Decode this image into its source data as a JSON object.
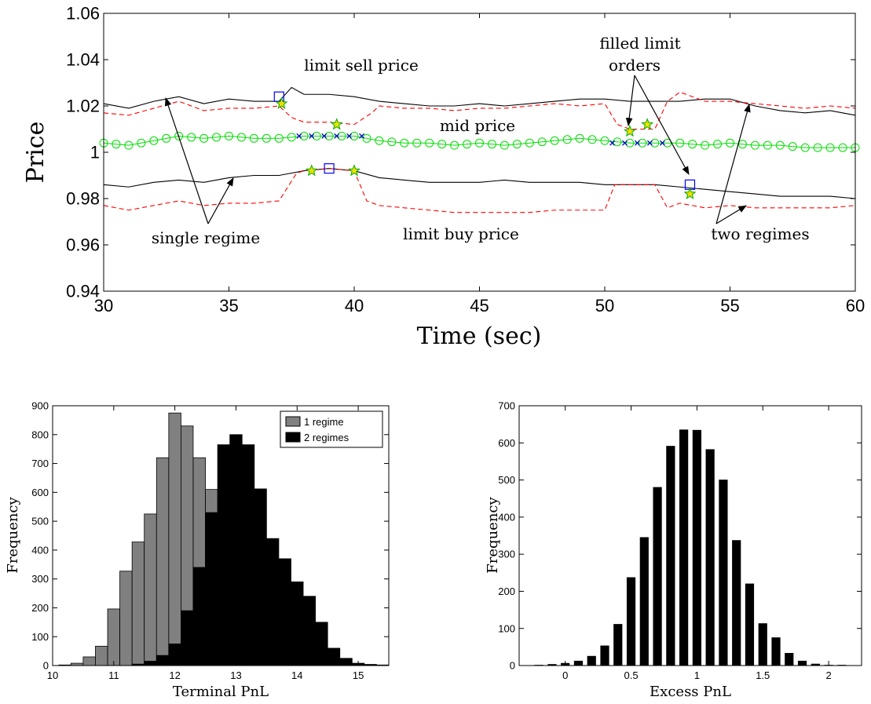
{
  "chart_data": [
    {
      "type": "line",
      "title": "",
      "xlabel": "Time (sec)",
      "ylabel": "Price",
      "xlim": [
        30,
        60
      ],
      "ylim": [
        0.94,
        1.06
      ],
      "xticks": [
        30,
        35,
        40,
        45,
        50,
        55,
        60
      ],
      "yticks": [
        0.94,
        0.96,
        0.98,
        1,
        1.02,
        1.04,
        1.06
      ],
      "xtick_labels": [
        "30",
        "35",
        "40",
        "45",
        "50",
        "55",
        "60"
      ],
      "ytick_labels": [
        "0.94",
        "0.96",
        "0.98",
        "1",
        "1.02",
        "1.04",
        "1.06"
      ],
      "grid": false,
      "colors": {
        "solid": "#000000",
        "dashed": "#ff0000",
        "mid": "#00dd00",
        "cross": "#0000cc",
        "square": "#0000ff",
        "star": "#00aa00",
        "star_fill": "#f0e000"
      },
      "series": [
        {
          "key": "mid",
          "style": "green-circles",
          "x": [
            30,
            31,
            32,
            33,
            34,
            35,
            36,
            37,
            38,
            39,
            40,
            41,
            42,
            43,
            44,
            45,
            46,
            47,
            48,
            49,
            50,
            51,
            52,
            53,
            54,
            55,
            56,
            57,
            58,
            59,
            60
          ],
          "y": [
            1.004,
            1.003,
            1.005,
            1.007,
            1.006,
            1.007,
            1.006,
            1.006,
            1.007,
            1.007,
            1.007,
            1.005,
            1.004,
            1.004,
            1.003,
            1.004,
            1.003,
            1.004,
            1.005,
            1.006,
            1.005,
            1.004,
            1.004,
            1.004,
            1.003,
            1.004,
            1.003,
            1.003,
            1.002,
            1.002,
            1.002
          ]
        },
        {
          "key": "mid_cross_1",
          "style": "blue-crosses",
          "x": [
            37.8,
            38.3,
            38.8,
            39.3,
            39.8,
            40.3
          ],
          "y": [
            1.007,
            1.007,
            1.007,
            1.007,
            1.007,
            1.007
          ]
        },
        {
          "key": "mid_cross_2",
          "style": "blue-crosses",
          "x": [
            50.3,
            50.8,
            51.3,
            51.8,
            52.3
          ],
          "y": [
            1.004,
            1.004,
            1.004,
            1.004,
            1.004
          ]
        },
        {
          "key": "sell_outer",
          "style": "black-solid",
          "x": [
            30,
            31,
            32,
            33,
            34,
            35,
            36,
            37,
            37.5,
            38,
            39,
            40,
            41,
            42,
            43,
            44,
            45,
            46,
            47,
            48,
            49,
            50,
            51,
            52,
            53,
            54,
            55,
            56,
            57,
            58,
            59,
            60
          ],
          "y": [
            1.021,
            1.019,
            1.022,
            1.024,
            1.021,
            1.023,
            1.022,
            1.022,
            1.028,
            1.025,
            1.025,
            1.024,
            1.022,
            1.021,
            1.02,
            1.02,
            1.021,
            1.02,
            1.021,
            1.022,
            1.023,
            1.023,
            1.022,
            1.022,
            1.022,
            1.023,
            1.023,
            1.02,
            1.018,
            1.017,
            1.018,
            1.016
          ]
        },
        {
          "key": "sell_inner",
          "style": "red-dashed",
          "x": [
            30,
            31,
            32,
            33,
            34,
            35,
            36,
            37,
            37.5,
            38,
            39,
            40,
            40.7,
            41,
            42,
            43,
            44,
            45,
            46,
            47,
            48,
            49,
            50,
            50.5,
            51,
            52,
            52.5,
            53,
            54,
            55,
            56,
            57,
            58,
            59,
            60
          ],
          "y": [
            1.017,
            1.016,
            1.019,
            1.022,
            1.018,
            1.019,
            1.019,
            1.02,
            1.015,
            1.013,
            1.013,
            1.012,
            1.017,
            1.02,
            1.019,
            1.019,
            1.018,
            1.019,
            1.019,
            1.02,
            1.021,
            1.02,
            1.021,
            1.012,
            1.01,
            1.01,
            1.022,
            1.026,
            1.022,
            1.022,
            1.021,
            1.02,
            1.019,
            1.02,
            1.019
          ]
        },
        {
          "key": "buy_outer",
          "style": "black-solid",
          "x": [
            30,
            31,
            32,
            33,
            34,
            35,
            36,
            37,
            38,
            39,
            40,
            41,
            42,
            43,
            44,
            45,
            46,
            47,
            48,
            49,
            50,
            51,
            52,
            53,
            54,
            55,
            56,
            57,
            58,
            59,
            60
          ],
          "y": [
            0.986,
            0.985,
            0.987,
            0.988,
            0.987,
            0.989,
            0.99,
            0.99,
            0.992,
            0.993,
            0.992,
            0.989,
            0.988,
            0.987,
            0.987,
            0.987,
            0.988,
            0.987,
            0.987,
            0.987,
            0.986,
            0.986,
            0.986,
            0.985,
            0.984,
            0.983,
            0.982,
            0.981,
            0.981,
            0.981,
            0.98
          ]
        },
        {
          "key": "buy_inner",
          "style": "red-dashed",
          "x": [
            30,
            31,
            32,
            33,
            34,
            35,
            36,
            37,
            37.7,
            38,
            39,
            40,
            40.5,
            41,
            42,
            43,
            44,
            45,
            46,
            47,
            48,
            49,
            50,
            50.4,
            51,
            52,
            52.5,
            53,
            54,
            55,
            56,
            57,
            58,
            59,
            60
          ],
          "y": [
            0.977,
            0.975,
            0.977,
            0.979,
            0.977,
            0.978,
            0.978,
            0.979,
            0.991,
            0.992,
            0.993,
            0.992,
            0.979,
            0.977,
            0.976,
            0.975,
            0.974,
            0.974,
            0.974,
            0.974,
            0.975,
            0.975,
            0.975,
            0.986,
            0.986,
            0.986,
            0.976,
            0.978,
            0.976,
            0.977,
            0.976,
            0.976,
            0.976,
            0.976,
            0.977
          ]
        }
      ],
      "squares": [
        {
          "x": 37,
          "y": 1.024
        },
        {
          "x": 39,
          "y": 0.993
        },
        {
          "x": 53.4,
          "y": 0.986
        }
      ],
      "stars": [
        {
          "x": 37.1,
          "y": 1.021
        },
        {
          "x": 39.3,
          "y": 1.012
        },
        {
          "x": 51.0,
          "y": 1.009
        },
        {
          "x": 51.7,
          "y": 1.012
        },
        {
          "x": 38.3,
          "y": 0.992
        },
        {
          "x": 40.0,
          "y": 0.992
        },
        {
          "x": 53.4,
          "y": 0.982
        }
      ],
      "annotations": [
        "limit sell price",
        "mid price",
        "filled limit",
        "orders",
        "single regime",
        "limit buy price",
        "two regimes"
      ]
    },
    {
      "type": "bar",
      "title": "",
      "xlabel": "Terminal PnL",
      "ylabel": "Frequency",
      "xlim": [
        10,
        15.5
      ],
      "ylim": [
        0,
        900
      ],
      "xticks": [
        10,
        11,
        12,
        13,
        14,
        15
      ],
      "yticks": [
        0,
        100,
        200,
        300,
        400,
        500,
        600,
        700,
        800,
        900
      ],
      "xtick_labels": [
        "10",
        "11",
        "12",
        "13",
        "14",
        "15"
      ],
      "ytick_labels": [
        "0",
        "100",
        "200",
        "300",
        "400",
        "500",
        "600",
        "700",
        "800",
        "900"
      ],
      "grid": false,
      "legend": {
        "position": "top-right",
        "entries": [
          "1 regime",
          "2 regimes"
        ]
      },
      "colors": {
        "1 regime": "#808080",
        "2 regimes": "#000000"
      },
      "series": [
        {
          "name": "1 regime",
          "bin_width": 0.2,
          "x": [
            10.2,
            10.4,
            10.6,
            10.8,
            11.0,
            11.2,
            11.4,
            11.6,
            11.8,
            12.0,
            12.2,
            12.4,
            12.6,
            12.8,
            13.0,
            13.2,
            13.4,
            13.6
          ],
          "values": [
            2,
            8,
            30,
            67,
            196,
            327,
            428,
            525,
            720,
            875,
            830,
            720,
            610,
            450,
            280,
            120,
            45,
            8
          ]
        },
        {
          "name": "2 regimes",
          "bin_width": 0.2,
          "x": [
            11.4,
            11.6,
            11.8,
            12.0,
            12.2,
            12.4,
            12.6,
            12.8,
            13.0,
            13.2,
            13.4,
            13.6,
            13.8,
            14.0,
            14.2,
            14.4,
            14.6,
            14.8,
            15.0,
            15.2,
            15.4
          ],
          "values": [
            5,
            15,
            35,
            75,
            190,
            340,
            530,
            765,
            800,
            765,
            612,
            440,
            370,
            290,
            240,
            150,
            60,
            25,
            8,
            4,
            2
          ]
        }
      ]
    },
    {
      "type": "bar",
      "title": "",
      "xlabel": "Excess PnL",
      "ylabel": "Frequency",
      "xlim": [
        -0.35,
        2.25
      ],
      "ylim": [
        0,
        700
      ],
      "xticks": [
        0,
        0.5,
        1,
        1.5,
        2
      ],
      "yticks": [
        0,
        100,
        200,
        300,
        400,
        500,
        600,
        700
      ],
      "xtick_labels": [
        "0",
        "0.5",
        "1",
        "1.5",
        "2"
      ],
      "ytick_labels": [
        "0",
        "100",
        "200",
        "300",
        "400",
        "500",
        "600",
        "700"
      ],
      "grid": false,
      "colors": {
        "bars": "#000000"
      },
      "series": [
        {
          "bin_width": 0.1,
          "x": [
            -0.2,
            -0.1,
            0.0,
            0.1,
            0.2,
            0.3,
            0.4,
            0.5,
            0.6,
            0.7,
            0.8,
            0.9,
            1.0,
            1.1,
            1.2,
            1.3,
            1.4,
            1.5,
            1.6,
            1.7,
            1.8,
            1.9,
            2.0,
            2.1
          ],
          "values": [
            1,
            3,
            6,
            12,
            25,
            53,
            111,
            237,
            345,
            480,
            591,
            635,
            634,
            582,
            500,
            337,
            220,
            113,
            75,
            33,
            12,
            4,
            1,
            1
          ]
        }
      ]
    }
  ]
}
